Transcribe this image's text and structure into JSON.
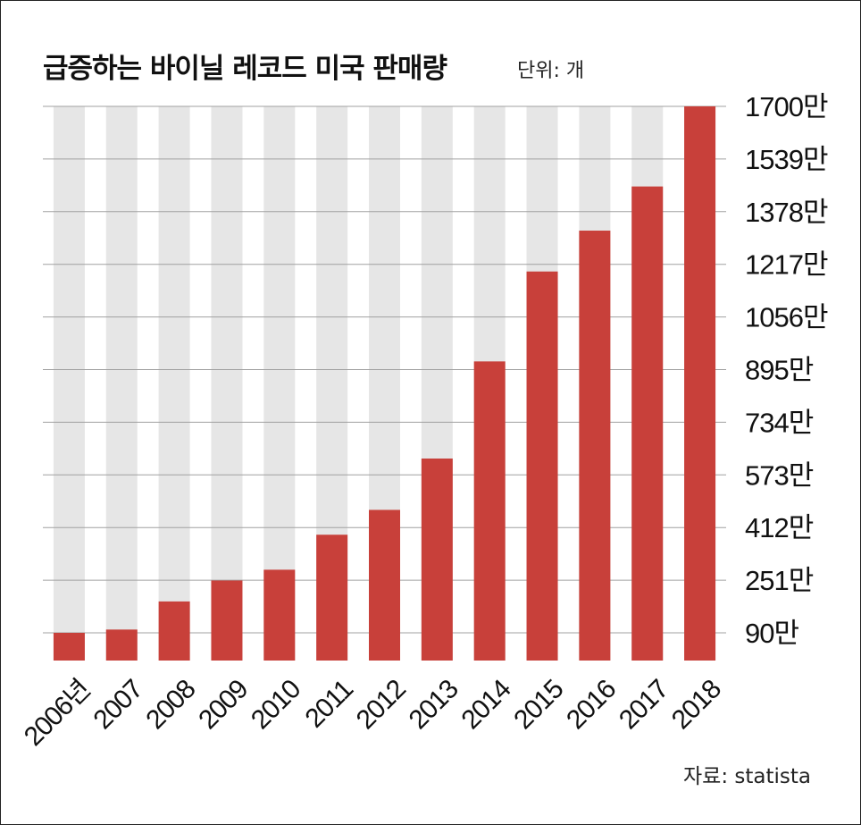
{
  "title": "급증하는 바이닐 레코드 미국 판매량",
  "unit_label": "단위: 개",
  "source": "자료: statista",
  "colors": {
    "bar": "#c8403a",
    "column_bg": "#e6e6e6",
    "grid": "#a0a0a0",
    "text": "#111111"
  },
  "chart_data": {
    "type": "bar",
    "categories": [
      "2006년",
      "2007",
      "2008",
      "2009",
      "2010",
      "2011",
      "2012",
      "2013",
      "2014",
      "2015",
      "2016",
      "2017",
      "2018"
    ],
    "values": [
      90,
      100,
      186,
      250,
      283,
      390,
      466,
      623,
      920,
      1195,
      1320,
      1455,
      1720
    ],
    "unit": "만",
    "y_ticks": [
      90,
      251,
      412,
      573,
      734,
      895,
      1056,
      1217,
      1378,
      1539,
      1700
    ],
    "y_tick_labels": [
      "90만",
      "251만",
      "412만",
      "573만",
      "734만",
      "895만",
      "1056만",
      "1217만",
      "1378만",
      "1539만",
      "1700만"
    ],
    "ylim": [
      0,
      1700
    ],
    "yaxis_position": "right",
    "grid": true
  }
}
